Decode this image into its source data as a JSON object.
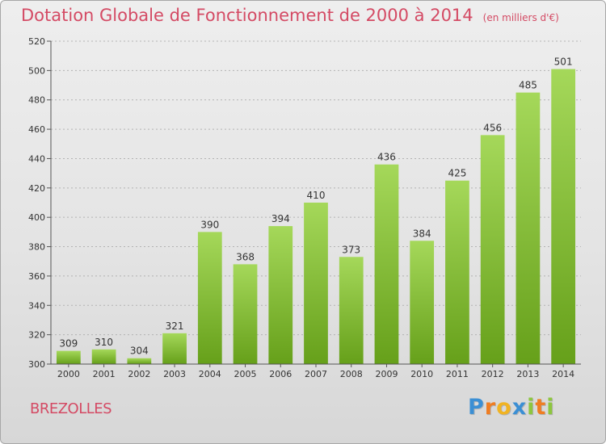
{
  "title": "Dotation Globale de Fonctionnement de 2000 à 2014",
  "unit_note": "(en milliers d'€)",
  "city": "BREZOLLES",
  "brand": {
    "letters": [
      "P",
      "r",
      "o",
      "x",
      "i",
      "t",
      "i"
    ],
    "colors": [
      "#3b8fd4",
      "#ef7d22",
      "#f0b323",
      "#3b8fd4",
      "#8dc63f",
      "#ef7d22",
      "#8dc63f"
    ]
  },
  "colors": {
    "accent": "#d44a64",
    "bar_light": "#a5d85a",
    "bar_dark": "#66a01a"
  },
  "chart_data": {
    "type": "bar",
    "title": "Dotation Globale de Fonctionnement de 2000 à 2014",
    "xlabel": "",
    "ylabel": "",
    "categories": [
      "2000",
      "2001",
      "2002",
      "2003",
      "2004",
      "2005",
      "2006",
      "2007",
      "2008",
      "2009",
      "2010",
      "2011",
      "2012",
      "2013",
      "2014"
    ],
    "values": [
      309,
      310,
      304,
      321,
      390,
      368,
      394,
      410,
      373,
      436,
      384,
      425,
      456,
      485,
      501
    ],
    "ylim": [
      300,
      520
    ],
    "yticks": [
      300,
      320,
      340,
      360,
      380,
      400,
      420,
      440,
      460,
      480,
      500,
      520
    ],
    "grid": "horizontal-dotted",
    "data_labels": true
  }
}
